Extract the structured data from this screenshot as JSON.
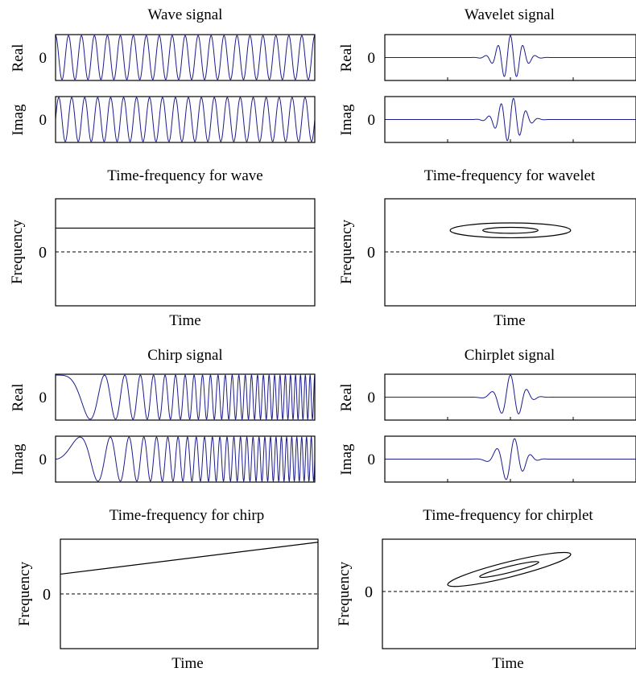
{
  "colors": {
    "signal": "#1c1c8c",
    "axis": "#000000",
    "tf": "#000000"
  },
  "zero_tick": "0",
  "chart_data": [
    {
      "type": "line",
      "title": "Wave signal",
      "panels": [
        "Real",
        "Imag"
      ],
      "signal": {
        "kind": "wave",
        "cycles": 20
      },
      "xlim": [
        0,
        1
      ],
      "ylim": [
        -1,
        1
      ],
      "yticks": [
        "0"
      ]
    },
    {
      "type": "line",
      "title": "Wavelet signal",
      "panels": [
        "Real",
        "Imag"
      ],
      "signal": {
        "kind": "wavelet",
        "center": 0.5,
        "width": 0.09,
        "cycles": 20
      },
      "xlim": [
        0,
        1
      ],
      "ylim": [
        -1,
        1
      ],
      "yticks": [
        "0"
      ]
    },
    {
      "type": "line",
      "title": "Time-frequency for wave",
      "xlabel": "Time",
      "ylabel": "Frequency",
      "series": [
        {
          "kind": "line",
          "x": [
            0,
            1
          ],
          "y": [
            0.32,
            0.32
          ]
        }
      ],
      "zero_line": "dashed",
      "ylim": [
        -0.72,
        0.72
      ],
      "yticks": [
        "0"
      ]
    },
    {
      "type": "line",
      "title": "Time-frequency for wavelet",
      "xlabel": "Time",
      "ylabel": "Frequency",
      "series": [
        {
          "kind": "ellipses",
          "center": [
            0.5,
            0.29
          ],
          "radii": [
            [
              0.24,
              0.1
            ],
            [
              0.11,
              0.04
            ]
          ],
          "tilt": 0
        }
      ],
      "zero_line": "dashed",
      "ylim": [
        -0.72,
        0.72
      ],
      "yticks": [
        "0"
      ]
    },
    {
      "type": "line",
      "title": "Chirp signal",
      "panels": [
        "Real",
        "Imag"
      ],
      "signal": {
        "kind": "chirp",
        "f0": 0,
        "f1": 56
      },
      "xlim": [
        0,
        1
      ],
      "ylim": [
        -1,
        1
      ],
      "yticks": [
        "0"
      ]
    },
    {
      "type": "line",
      "title": "Chirplet signal",
      "panels": [
        "Real",
        "Imag"
      ],
      "signal": {
        "kind": "chirplet",
        "center": 0.5,
        "width": 0.09,
        "f0": 14,
        "f1": 44
      },
      "xlim": [
        0,
        1
      ],
      "ylim": [
        -1,
        1
      ],
      "yticks": [
        "0"
      ]
    },
    {
      "type": "line",
      "title": "Time-frequency for chirp",
      "xlabel": "Time",
      "ylabel": "Frequency",
      "series": [
        {
          "kind": "line",
          "x": [
            0,
            1
          ],
          "y": [
            0.26,
            0.68
          ]
        }
      ],
      "zero_line": "dashed",
      "ylim": [
        -0.72,
        0.72
      ],
      "yticks": [
        "0"
      ]
    },
    {
      "type": "line",
      "title": "Time-frequency for chirplet",
      "xlabel": "Time",
      "ylabel": "Frequency",
      "series": [
        {
          "kind": "ellipses",
          "center": [
            0.5,
            0.29
          ],
          "radii": [
            [
              0.25,
              0.1
            ],
            [
              0.12,
              0.04
            ]
          ],
          "tilt": 14
        }
      ],
      "zero_line": "dashed",
      "ylim": [
        -0.72,
        0.72
      ],
      "yticks": [
        "0"
      ]
    }
  ]
}
